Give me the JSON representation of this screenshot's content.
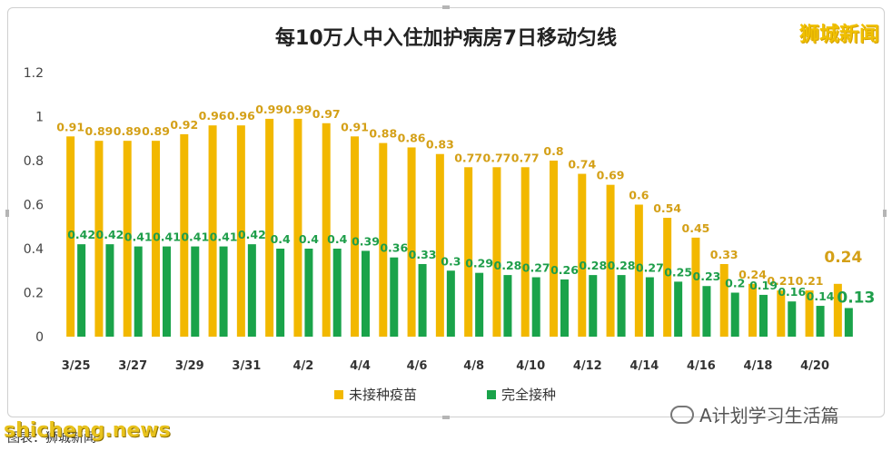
{
  "chart_data": {
    "type": "bar",
    "title": "每10万人中入住加护病房7日移动匀线",
    "xlabel": "",
    "ylabel": "",
    "ylim": [
      0,
      1.2
    ],
    "yticks": [
      "0",
      "0.2",
      "0.4",
      "0.6",
      "0.8",
      "1",
      "1.2"
    ],
    "grid": false,
    "legend_position": "bottom",
    "categories": [
      "3/25",
      "3/26",
      "3/27",
      "3/28",
      "3/29",
      "3/30",
      "3/31",
      "4/1",
      "4/2",
      "4/3",
      "4/4",
      "4/5",
      "4/6",
      "4/7",
      "4/8",
      "4/9",
      "4/10",
      "4/11",
      "4/12",
      "4/13",
      "4/14",
      "4/15",
      "4/16",
      "4/17",
      "4/18",
      "4/19",
      "4/20",
      "4/21"
    ],
    "tick_labels": [
      "3/25",
      "",
      "3/27",
      "",
      "3/29",
      "",
      "3/31",
      "",
      "4/2",
      "",
      "4/4",
      "",
      "4/6",
      "",
      "4/8",
      "",
      "4/10",
      "",
      "4/12",
      "",
      "4/14",
      "",
      "4/16",
      "",
      "4/18",
      "",
      "4/20",
      ""
    ],
    "series": [
      {
        "name": "未接种疫苗",
        "color": "#f2b800",
        "label_color": "#d4a017",
        "values": [
          0.91,
          0.89,
          0.89,
          0.89,
          0.92,
          0.96,
          0.96,
          0.99,
          0.99,
          0.97,
          0.91,
          0.88,
          0.86,
          0.83,
          0.77,
          0.77,
          0.77,
          0.8,
          0.74,
          0.69,
          0.6,
          0.54,
          0.45,
          0.33,
          0.24,
          0.21,
          0.21,
          0.24
        ],
        "labels": [
          "0.91",
          "0.89",
          "0.89",
          "0.89",
          "0.92",
          "0.96",
          "0.96",
          "0.99",
          "0.99",
          "0.97",
          "0.91",
          "0.88",
          "0.86",
          "0.83",
          "0.77",
          "0.77",
          "0.77",
          "0.8",
          "0.74",
          "0.69",
          "0.6",
          "0.54",
          "0.45",
          "0.33",
          "0.24",
          "0.21",
          "0.21",
          "0.24"
        ]
      },
      {
        "name": "完全接种",
        "color": "#1aa34a",
        "label_color": "#1e9e4a",
        "values": [
          0.42,
          0.42,
          0.41,
          0.41,
          0.41,
          0.41,
          0.42,
          0.4,
          0.4,
          0.4,
          0.39,
          0.36,
          0.33,
          0.3,
          0.29,
          0.28,
          0.27,
          0.26,
          0.28,
          0.28,
          0.27,
          0.25,
          0.23,
          0.2,
          0.19,
          0.16,
          0.14,
          0.13
        ],
        "labels": [
          "0.42",
          "0.42",
          "0.41",
          "0.41",
          "0.41",
          "0.41",
          "0.42",
          "0.4",
          "0.4",
          "0.4",
          "0.39",
          "0.36",
          "0.33",
          "0.3",
          "0.29",
          "0.28",
          "0.27",
          "0.26",
          "0.28",
          "0.28",
          "0.27",
          "0.25",
          "0.23",
          "0.2",
          "0.19",
          "0.16",
          "0.14",
          "0.13"
        ]
      }
    ]
  },
  "branding": {
    "logo": "狮城新闻",
    "wechat_account": "A计划学习生活篇",
    "watermark": "shicheng.news",
    "footer_note": "图表：狮城新闻"
  }
}
